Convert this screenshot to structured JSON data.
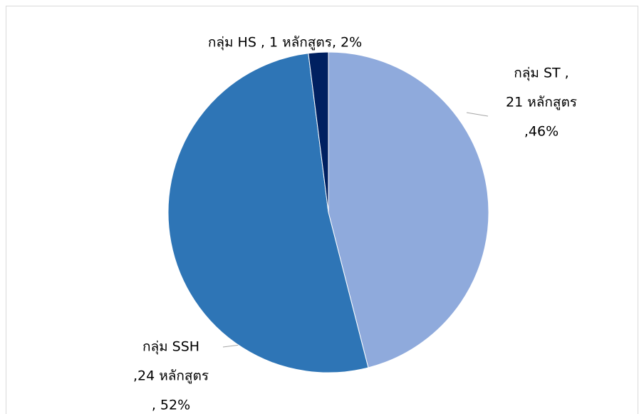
{
  "chart_data": {
    "type": "pie",
    "values": [
      46,
      52,
      2
    ],
    "value_labels": [
      [
        "กลุ่ม ST ,",
        "21 หลักสูตร",
        ",46%"
      ],
      [
        "กลุ่ม SSH",
        ",24 หลักสูตร",
        ", 52%"
      ],
      [
        "กลุ่ม HS , 1 หลักสูตร, 2%"
      ]
    ],
    "colors": [
      "#8faadc",
      "#2e75b6",
      "#002060"
    ]
  }
}
